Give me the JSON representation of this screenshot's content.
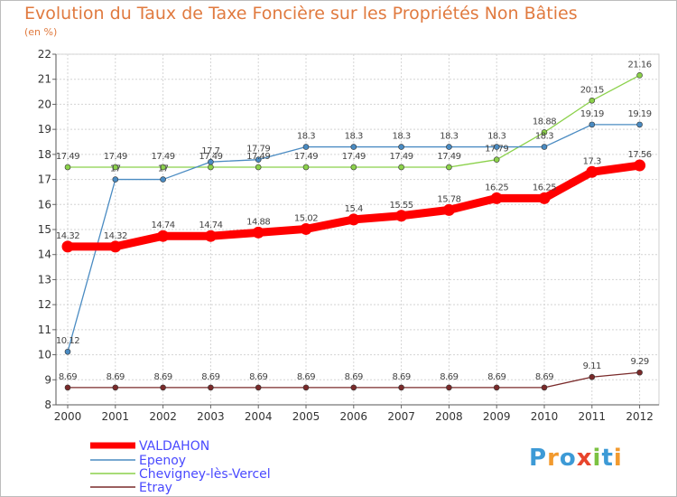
{
  "title": "Evolution du Taux de Taxe Foncière sur les Propriétés Non Bâties",
  "subtitle": "(en %)",
  "logo": {
    "letters": [
      "P",
      "r",
      "o",
      "x",
      "i",
      "t",
      "i"
    ],
    "colors": [
      "#3d9ad6",
      "#f29a2e",
      "#3d9ad6",
      "#e8452c",
      "#7cc242",
      "#3d9ad6",
      "#f29a2e"
    ]
  },
  "chart_data": {
    "type": "line",
    "x": [
      "2000",
      "2001",
      "2002",
      "2003",
      "2004",
      "2005",
      "2006",
      "2007",
      "2008",
      "2009",
      "2010",
      "2011",
      "2012"
    ],
    "ylim": [
      8,
      22
    ],
    "yticks": [
      "8",
      "9",
      "10",
      "11",
      "12",
      "13",
      "14",
      "15",
      "16",
      "17",
      "18",
      "19",
      "20",
      "21",
      "22"
    ],
    "grid": true,
    "legend_position": "bottom-left",
    "series": [
      {
        "name": "VALDAHON",
        "color": "#ff0000",
        "width": "thick",
        "values": [
          14.32,
          14.32,
          14.74,
          14.74,
          14.88,
          15.02,
          15.4,
          15.55,
          15.78,
          16.25,
          16.25,
          17.3,
          17.56
        ],
        "labels": [
          "14.32",
          "14.32",
          "14.74",
          "14.74",
          "14.88",
          "15.02",
          "15.4",
          "15.55",
          "15.78",
          "16.25",
          "16.25",
          "17.3",
          "17.56"
        ]
      },
      {
        "name": "Epenoy",
        "color": "#4a8bc2",
        "width": "thin",
        "values": [
          10.12,
          17,
          17,
          17.7,
          17.79,
          18.3,
          18.3,
          18.3,
          18.3,
          18.3,
          18.3,
          19.19,
          19.19
        ],
        "labels": [
          "10.12",
          "17",
          "17",
          "17.7",
          "17.79",
          "18.3",
          "18.3",
          "18.3",
          "18.3",
          "18.3",
          "18.3",
          "19.19",
          "19.19"
        ]
      },
      {
        "name": "Chevigney-lès-Vercel",
        "color": "#8bd14a",
        "width": "thin",
        "values": [
          17.49,
          17.49,
          17.49,
          17.49,
          17.49,
          17.49,
          17.49,
          17.49,
          17.49,
          17.79,
          18.88,
          20.15,
          21.16
        ],
        "labels": [
          "17.49",
          "17.49",
          "17.49",
          "17.49",
          "17.49",
          "17.49",
          "17.49",
          "17.49",
          "17.49",
          "17.79",
          "18.88",
          "20.15",
          "21.16"
        ]
      },
      {
        "name": "Etray",
        "color": "#7a2a2a",
        "width": "thin",
        "values": [
          8.69,
          8.69,
          8.69,
          8.69,
          8.69,
          8.69,
          8.69,
          8.69,
          8.69,
          8.69,
          8.69,
          9.11,
          9.29
        ],
        "labels": [
          "8.69",
          "8.69",
          "8.69",
          "8.69",
          "8.69",
          "8.69",
          "8.69",
          "8.69",
          "8.69",
          "8.69",
          "8.69",
          "9.11",
          "9.29"
        ]
      }
    ],
    "legend_text_color": "#4a4aff"
  }
}
